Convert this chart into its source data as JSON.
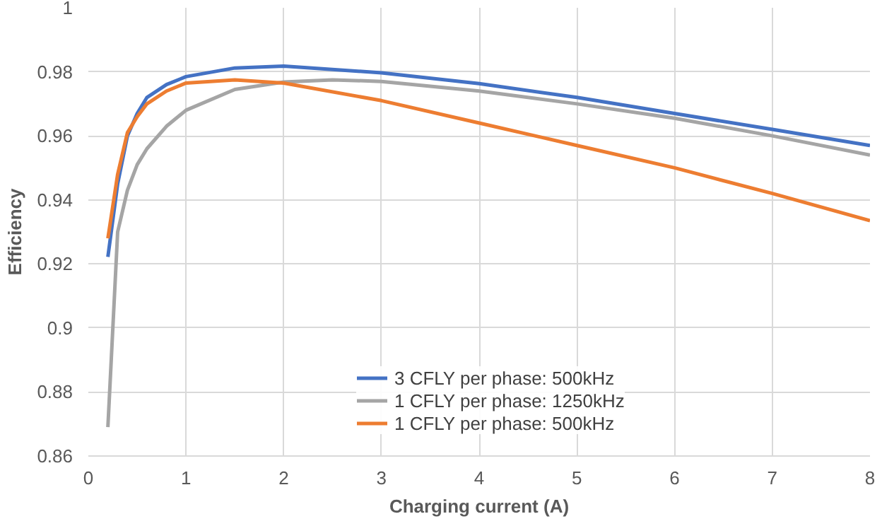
{
  "chart_data": {
    "type": "line",
    "xlabel": "Charging current (A)",
    "ylabel": "Efficiency",
    "xlim": [
      0,
      8
    ],
    "xticks": [
      0,
      1,
      2,
      3,
      4,
      5,
      6,
      7,
      8
    ],
    "ylim": [
      0.86,
      1
    ],
    "yticks": [
      0.86,
      0.88,
      0.9,
      0.92,
      0.94,
      0.96,
      0.98,
      1
    ],
    "grid": true,
    "legend": "bottom",
    "line_style": "solid",
    "marker": "none",
    "series": [
      {
        "name": "3 CFLY per phase: 500kHz",
        "color": "#4472c4",
        "x": [
          0.2,
          0.3,
          0.4,
          0.5,
          0.6,
          0.8,
          1,
          1.5,
          2,
          3,
          4,
          5,
          6,
          7,
          8
        ],
        "values": [
          0.9222,
          0.945,
          0.96,
          0.967,
          0.972,
          0.976,
          0.9785,
          0.9812,
          0.9818,
          0.9797,
          0.9763,
          0.972,
          0.967,
          0.962,
          0.957
        ]
      },
      {
        "name": "1 CFLY per phase: 1250kHz",
        "color": "#a5a5a5",
        "x": [
          0.2,
          0.3,
          0.4,
          0.5,
          0.6,
          0.8,
          1,
          1.5,
          2,
          2.5,
          3,
          4,
          5,
          6,
          7,
          8
        ],
        "values": [
          0.869,
          0.93,
          0.943,
          0.951,
          0.956,
          0.963,
          0.968,
          0.9745,
          0.9768,
          0.9775,
          0.977,
          0.974,
          0.97,
          0.9655,
          0.96,
          0.954
        ]
      },
      {
        "name": "1 CFLY per phase: 500kHz",
        "color": "#ed7d31",
        "x": [
          0.2,
          0.3,
          0.4,
          0.5,
          0.6,
          0.8,
          1,
          1.5,
          2,
          3,
          4,
          5,
          6,
          7,
          8
        ],
        "values": [
          0.928,
          0.948,
          0.961,
          0.966,
          0.97,
          0.974,
          0.9765,
          0.9775,
          0.9765,
          0.971,
          0.964,
          0.957,
          0.95,
          0.942,
          0.9335
        ]
      }
    ]
  }
}
